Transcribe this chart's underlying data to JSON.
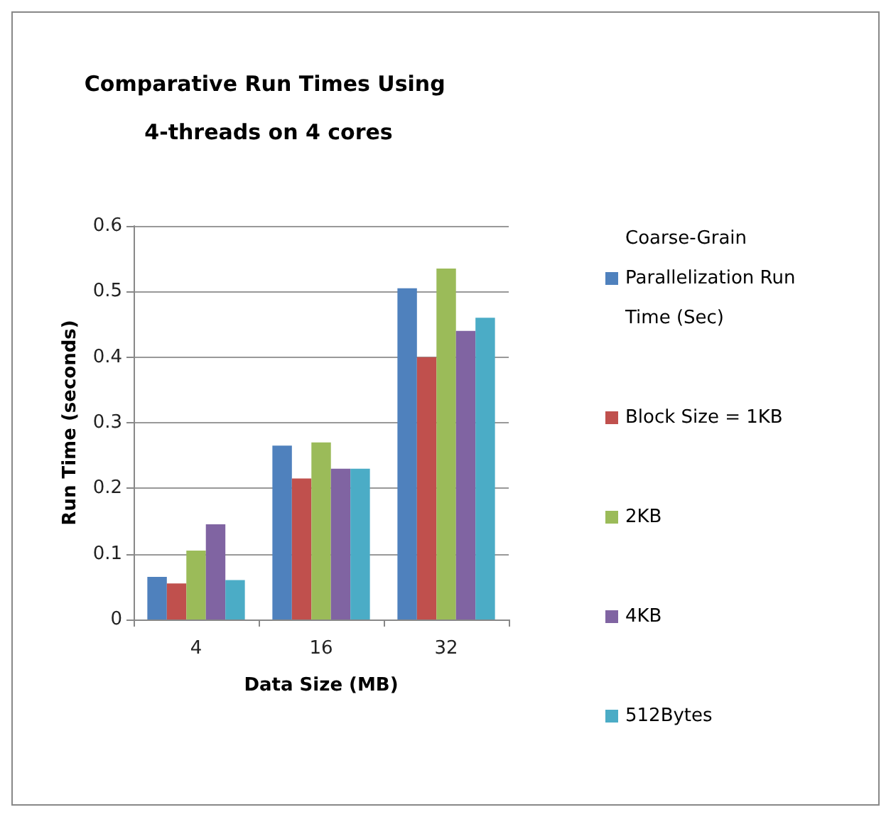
{
  "chart_data": {
    "type": "bar",
    "title": "Comparative Run Times Using 4-threads on 4 cores",
    "xlabel": "Data Size (MB)",
    "ylabel": "Run Time (seconds)",
    "categories": [
      "4",
      "16",
      "32"
    ],
    "series": [
      {
        "name": "Coarse-Grain Parallelization Run Time (Sec)",
        "color": "#4f81bd",
        "values": [
          0.065,
          0.265,
          0.505
        ]
      },
      {
        "name": "Block Size = 1KB",
        "color": "#c0504d",
        "values": [
          0.055,
          0.215,
          0.4
        ]
      },
      {
        "name": "2KB",
        "color": "#9bbb59",
        "values": [
          0.105,
          0.27,
          0.535
        ]
      },
      {
        "name": "4KB",
        "color": "#8064a2",
        "values": [
          0.145,
          0.23,
          0.44
        ]
      },
      {
        "name": "512Bytes",
        "color": "#4bacc6",
        "values": [
          0.06,
          0.23,
          0.46
        ]
      }
    ],
    "ylim": [
      0,
      0.6
    ],
    "yticks": [
      0,
      0.1,
      0.2,
      0.3,
      0.4,
      0.5,
      0.6
    ],
    "grid": "y",
    "legend": "right"
  }
}
